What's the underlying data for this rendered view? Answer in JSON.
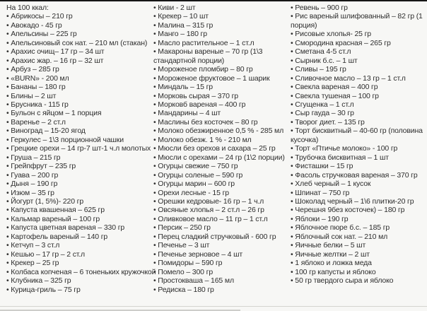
{
  "page": {
    "heading": "На 100 ккал:"
  },
  "columns": {
    "left": {
      "items": [
        "Абрикосы – 210 гр",
        "Авокадо - 45 гр",
        "Апельсины – 225 гр",
        "Апельсиновый сок нат. – 210 мл (стакан)",
        "Арахис очищ– 17 гр – 34 шт",
        "Арахис жар. – 16 гр – 32 шт",
        "Арбуз – 285 гр",
        "«BURN» - 200 мл",
        "Бананы – 180 гр",
        "Блины – 2 шт",
        "Брусника - 115 гр",
        "Бульон с яйцом – 1 порция",
        "Варенье – 2 ст.л",
        "Виноград – 15-20 ягод",
        "Геркулес – 1\\3 порционной чашки",
        "Грецкие орехи – 14 гр-7 шт-1 ч.л молотых",
        "Груша – 215 гр",
        "Грейпфрут – 235 гр",
        "Гуава – 200 гр",
        "Дыня – 190 гр",
        "Изюм – 35 гр",
        "Йогурт (1, 5%)- 220 гр",
        "Капуста квашенная – 625 гр",
        "Кальмар вареный – 100 гр",
        "Капуста цветная вареная – 330 гр",
        "Картофель вареный – 140 гр",
        "Кетчуп – 3 ст.л",
        "Кешью – 17 гр – 2 ст.л",
        "Крекер – 25 гр",
        "Колбаса копченая – 6 тоненьких кружочкой",
        "Клубника – 325 гр",
        "Курица-гриль – 75 гр"
      ]
    },
    "middle": {
      "items": [
        "Киви - 2 шт",
        "Крекер – 10 шт",
        "Малина – 315 гр",
        "Манго – 180 гр",
        "Масло растительное – 1 ст.л",
        "Макароны вареные – 70 гр (1\\3 стандартной порции)",
        "Мороженое пломбир – 80 гр",
        "Мороженое фруктовое – 1 шарик",
        "Миндаль – 15 гр",
        "Морковь сырая – 370 гр",
        "Морковб вареная – 400 гр",
        "Мандарины – 4 шт",
        "Маслины без косточек – 80 гр",
        "Молоко обезжиренное 0,5 % - 285 мл",
        "Молоко обезж. 1 % - 210 мл",
        "Мюсли без орехов и сахара – 25 гр",
        "Мюсли с орехами – 24 гр (1\\2 порции)",
        "Огурцы свежие – 750 гр",
        "Огурцы соленые – 590 гр",
        "Огурцы марин – 600 гр",
        "Орехи лесные - 15 гр",
        "Орешки кедровые- 16 гр – 1 ч.л",
        "Овсяные хлопья – 2 ст.л – 26 гр",
        "Оливковое масло – 11 гр – 1 ст.л",
        "Персик – 250 гр",
        "Перец сладкий стручковый - 600 гр",
        "Печенье – 3 шт",
        "Печенье зерновое – 4 шт",
        "Помидоры – 590 гр",
        "Помело – 300 гр",
        "Простокваша – 165 мл",
        "Редиска – 180 гр"
      ]
    },
    "right": {
      "items": [
        "Ревень – 900 гр",
        "Рис вареный шлифованный – 82 гр (1 порция)",
        "Рисовые хлопья- 25 гр",
        "Смородина красная – 265 гр",
        "Сметана 4-5 ст.л",
        "Сырник б.с. – 1 шт",
        "Сливы – 195 гр",
        "Сливочное масло – 13 гр – 1 ст.л",
        "Свекла вареная – 400 гр",
        "Свекла тушеная – 100 гр",
        "Сгущенка – 1 ст.л",
        "Сыр гауда – 30 гр",
        "Творог диет. – 135 гр",
        "Торт бисквитный – 40-60 гр (половина кусочка)",
        "Торт «Птичье молоко» - 100 гр",
        "Трубочка бисквитная – 1 шт",
        "Фисташки – 15 гр",
        "Фасоль стручковая вареная – 370 гр",
        "Хлеб черный – 1 кусок",
        "Шпинат – 750 гр",
        "Шоколад черный – 1\\6 плитки-20 гр",
        "Черешня 9без косточек) – 180 гр",
        "Яблоки – 190 гр",
        "Яблочное пюре б.с. – 185 гр",
        "Яблочный сок нат. – 210 мл",
        "Яичные белки – 5 шт",
        "Яичные желтки – 2 шт",
        "1 яблоко и ложка меда",
        "100 гр капусты и яблоко",
        "50 гр твердого сыра и яблоко"
      ]
    }
  }
}
